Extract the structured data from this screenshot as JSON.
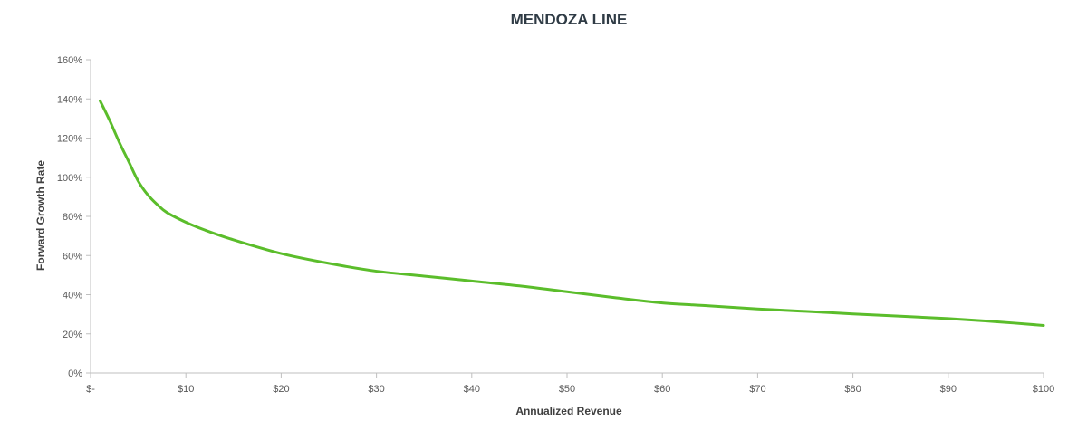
{
  "chart_data": {
    "type": "line",
    "title": "MENDOZA LINE",
    "xlabel": "Annualized Revenue",
    "ylabel": "Forward Growth Rate",
    "xlim": [
      0,
      100
    ],
    "ylim": [
      0,
      1.6
    ],
    "x_ticks": [
      0,
      10,
      20,
      30,
      40,
      50,
      60,
      70,
      80,
      90,
      100
    ],
    "x_tick_labels": [
      "$-",
      "$10",
      "$20",
      "$30",
      "$40",
      "$50",
      "$60",
      "$70",
      "$80",
      "$90",
      "$100"
    ],
    "y_ticks": [
      0,
      0.2,
      0.4,
      0.6,
      0.8,
      1.0,
      1.2,
      1.4,
      1.6
    ],
    "y_tick_labels": [
      "0%",
      "20%",
      "40%",
      "60%",
      "80%",
      "100%",
      "120%",
      "140%",
      "160%"
    ],
    "grid": false,
    "legend": "none",
    "series": [
      {
        "color": "#5bbd2b",
        "x": [
          1,
          2,
          3,
          4,
          5,
          6,
          7,
          8,
          10,
          12,
          15,
          20,
          25,
          30,
          35,
          40,
          45,
          50,
          55,
          60,
          65,
          70,
          75,
          80,
          85,
          90,
          95,
          100
        ],
        "y": [
          1.39,
          1.29,
          1.18,
          1.08,
          0.98,
          0.91,
          0.86,
          0.82,
          0.77,
          0.73,
          0.68,
          0.61,
          0.56,
          0.52,
          0.495,
          0.47,
          0.445,
          0.415,
          0.385,
          0.358,
          0.343,
          0.327,
          0.315,
          0.302,
          0.29,
          0.278,
          0.262,
          0.243
        ]
      }
    ]
  }
}
